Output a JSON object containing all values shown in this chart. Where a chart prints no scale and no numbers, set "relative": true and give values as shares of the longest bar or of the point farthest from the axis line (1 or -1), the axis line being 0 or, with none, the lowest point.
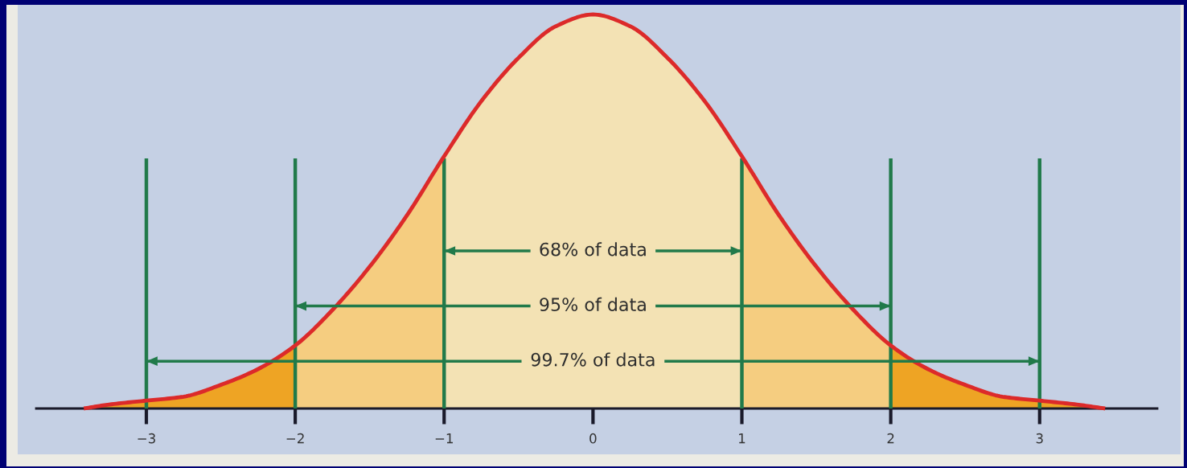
{
  "chart_data": {
    "type": "area",
    "relative": true,
    "xlim": [
      -3.74,
      3.79
    ],
    "xticks": [
      {
        "value": -3,
        "label": "−3"
      },
      {
        "value": -2,
        "label": "−2"
      },
      {
        "value": -1,
        "label": "−1"
      },
      0,
      1,
      2,
      3
    ],
    "series": [
      {
        "color": "#eea424",
        "x": [
          -3.42,
          -3.25,
          -3,
          -2.75,
          -2.5,
          -2.25,
          -2
        ],
        "values": [
          0,
          0.01,
          0.02,
          0.03,
          0.06,
          0.1,
          0.16
        ]
      },
      {
        "color": "#f5cd80",
        "x": [
          -2,
          -1.75,
          -1.5,
          -1.25,
          -1
        ],
        "values": [
          0.16,
          0.25,
          0.36,
          0.49,
          0.64
        ]
      },
      {
        "color": "#f3e2b4",
        "x": [
          -1,
          -0.75,
          -0.5,
          -0.25,
          0,
          0.25,
          0.5,
          0.75,
          1
        ],
        "values": [
          0.64,
          0.78,
          0.89,
          0.97,
          1,
          0.97,
          0.89,
          0.78,
          0.64
        ]
      },
      {
        "color": "#f5cd80",
        "x": [
          1,
          1.25,
          1.5,
          1.75,
          2
        ],
        "values": [
          0.64,
          0.49,
          0.36,
          0.25,
          0.16
        ]
      },
      {
        "color": "#eea424",
        "x": [
          2,
          2.25,
          2.5,
          2.75,
          3,
          3.25,
          3.44
        ],
        "values": [
          0.16,
          0.1,
          0.06,
          0.03,
          0.02,
          0.01,
          0
        ]
      },
      {
        "type": "line",
        "color": "#dc2a2a",
        "x": [
          -3.42,
          -3.25,
          -3,
          -2.75,
          -2.5,
          -2.25,
          -2,
          -1.75,
          -1.5,
          -1.25,
          -1,
          -0.75,
          -0.5,
          -0.25,
          0,
          0.25,
          0.5,
          0.75,
          1,
          1.25,
          1.5,
          1.75,
          2,
          2.25,
          2.5,
          2.75,
          3,
          3.25,
          3.44
        ],
        "values": [
          0,
          0.01,
          0.02,
          0.03,
          0.06,
          0.1,
          0.16,
          0.25,
          0.36,
          0.49,
          0.64,
          0.78,
          0.89,
          0.97,
          1,
          0.97,
          0.89,
          0.78,
          0.64,
          0.49,
          0.36,
          0.25,
          0.16,
          0.1,
          0.06,
          0.03,
          0.02,
          0.01,
          0
        ]
      },
      {
        "type": "line",
        "name": "68% of data",
        "color": "#217a4a",
        "x": [
          -1,
          1
        ],
        "values": [
          0.4,
          0.4
        ]
      },
      {
        "type": "line",
        "name": "95% of data",
        "color": "#217a4a",
        "x": [
          -2,
          2
        ],
        "values": [
          0.26,
          0.26
        ]
      },
      {
        "type": "line",
        "name": "99.7% of data",
        "color": "#217a4a",
        "x": [
          -3,
          3
        ],
        "values": [
          0.12,
          0.12
        ]
      }
    ],
    "ref_lines": [
      {
        "axis": "x",
        "value": -3,
        "color": "#217a4a"
      },
      {
        "axis": "x",
        "value": -2,
        "color": "#217a4a"
      },
      {
        "axis": "x",
        "value": -1,
        "color": "#217a4a"
      },
      {
        "axis": "x",
        "value": 1,
        "color": "#217a4a"
      },
      {
        "axis": "x",
        "value": 2,
        "color": "#217a4a"
      },
      {
        "axis": "x",
        "value": 3,
        "color": "#217a4a"
      }
    ]
  }
}
